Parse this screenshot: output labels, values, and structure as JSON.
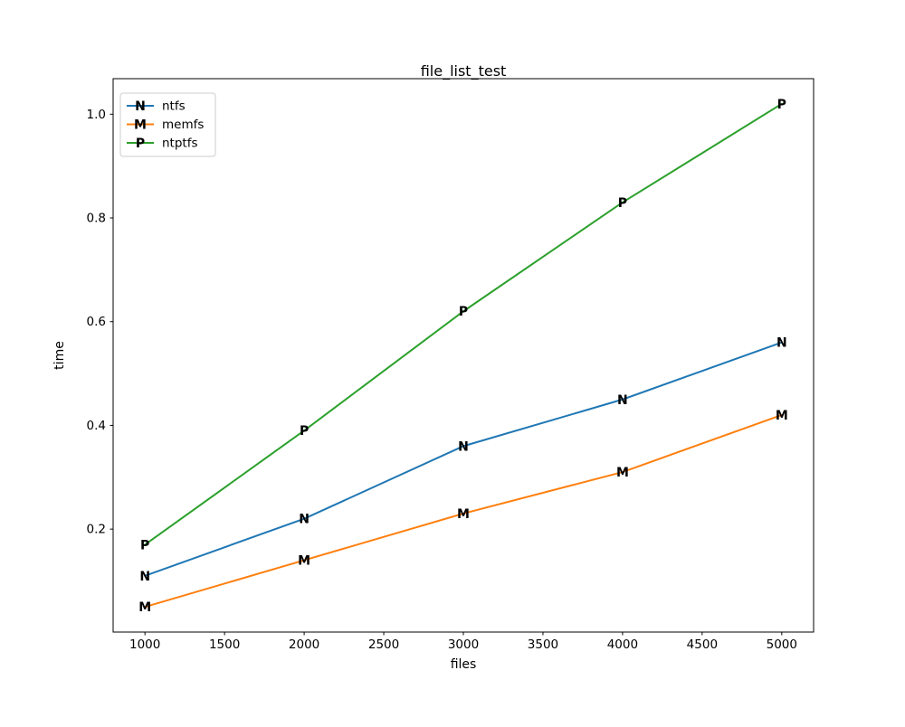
{
  "figure": {
    "background": "#ffffff",
    "axis_color": "#000000",
    "text_color": "#000000"
  },
  "chart_data": {
    "type": "line",
    "title": "file_list_test",
    "xlabel": "files",
    "ylabel": "time",
    "x": [
      1000,
      2000,
      3000,
      4000,
      5000
    ],
    "series": [
      {
        "name": "ntfs",
        "color": "#1f77b4",
        "marker": "N",
        "values": [
          0.11,
          0.22,
          0.36,
          0.45,
          0.56
        ]
      },
      {
        "name": "memfs",
        "color": "#ff7f0e",
        "marker": "M",
        "values": [
          0.05,
          0.14,
          0.23,
          0.31,
          0.42
        ]
      },
      {
        "name": "ntptfs",
        "color": "#2ca02c",
        "marker": "P",
        "values": [
          0.17,
          0.39,
          0.62,
          0.83,
          1.02
        ]
      }
    ],
    "xticks": [
      1000,
      1500,
      2000,
      2500,
      3000,
      3500,
      4000,
      4500,
      5000
    ],
    "yticks": [
      0.2,
      0.4,
      0.6,
      0.8,
      1.0
    ],
    "xlim": [
      800,
      5200
    ],
    "ylim": [
      0.0015,
      1.0685
    ],
    "grid": false,
    "legend": {
      "position": "upper-left",
      "entries": [
        "ntfs",
        "memfs",
        "ntptfs"
      ],
      "border_color": "#cccccc",
      "background": "rgba(255,255,255,0.8)"
    }
  }
}
